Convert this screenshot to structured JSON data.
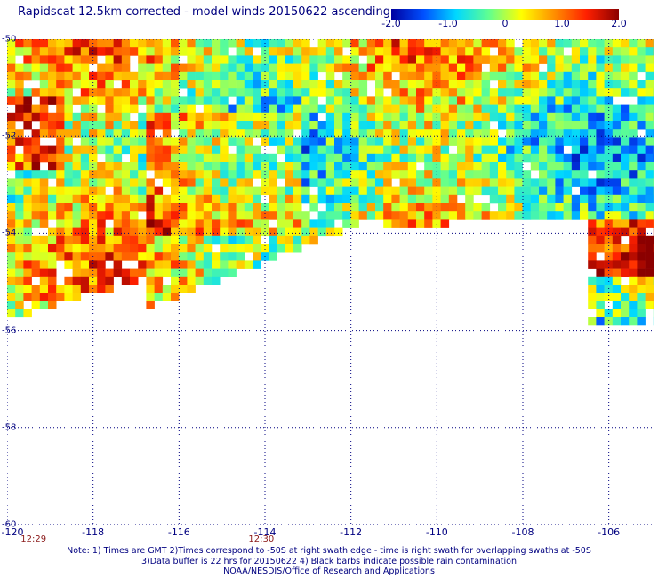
{
  "title": "Rapidscat 12.5km corrected - model winds 20150622 ascending",
  "colorbar": {
    "ticks": [
      "-2.0",
      "-1.0",
      "0",
      "1.0",
      "2.0"
    ],
    "tick_values": [
      -2.0,
      -1.0,
      0,
      1.0,
      2.0
    ],
    "range": [
      -2.0,
      2.0
    ],
    "colors": [
      "#0000a0",
      "#0050ff",
      "#00d8ff",
      "#60ff90",
      "#ffff00",
      "#ff9000",
      "#ff2000",
      "#8b0000"
    ]
  },
  "map": {
    "lon_range": [
      -120,
      -105
    ],
    "lat_range": [
      -60,
      -50
    ],
    "x_ticks": [
      "-120",
      "-118",
      "-116",
      "-114",
      "-112",
      "-110",
      "-108",
      "-106"
    ],
    "x_tick_values": [
      -120,
      -118,
      -116,
      -114,
      -112,
      -110,
      -108,
      -106
    ],
    "y_ticks": [
      "-50",
      "-52",
      "-54",
      "-56",
      "-58",
      "-60"
    ],
    "y_tick_values": [
      -50,
      -52,
      -54,
      -56,
      -58,
      -60
    ],
    "grid": "dotted",
    "times": [
      {
        "label": "12:29",
        "lon": -119.8
      },
      {
        "label": "12:30",
        "lon": -114.5
      }
    ]
  },
  "notes": [
    "Note: 1) Times are GMT 2)Times correspond to -50S at right swath edge - time is right swath for overlapping swaths at -50S",
    "3)Data buffer is 22 hrs for 20150622 4) Black barbs indicate possible rain contamination",
    "NOAA/NESDIS/Office of Research and Applications"
  ]
}
